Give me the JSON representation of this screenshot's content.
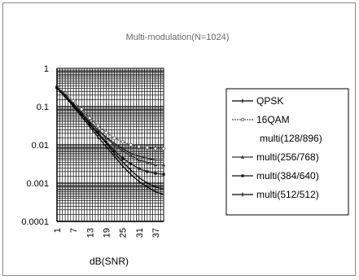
{
  "chart_data": {
    "type": "line",
    "title": "Multi-modulation(N=1024)",
    "xlabel": "dB(SNR)",
    "ylabel": "",
    "y_scale": "log",
    "ylim": [
      0.0001,
      1
    ],
    "x_ticks": [
      "1",
      "7",
      "13",
      "19",
      "25",
      "31",
      "37"
    ],
    "y_ticks": [
      "1",
      "0.1",
      "0.01",
      "0.001",
      "0.0001"
    ],
    "grid": true,
    "legend": "right",
    "x": [
      1,
      4,
      7,
      10,
      13,
      16,
      19,
      22,
      25,
      28,
      31,
      34,
      37,
      40
    ],
    "series": [
      {
        "name": "QPSK",
        "color": "#000000",
        "values": [
          0.3,
          0.18,
          0.1,
          0.055,
          0.03,
          0.016,
          0.009,
          0.005,
          0.0028,
          0.0017,
          0.0011,
          0.0008,
          0.0006,
          0.0005
        ]
      },
      {
        "name": "16QAM",
        "color": "#555555",
        "values": [
          0.33,
          0.22,
          0.14,
          0.085,
          0.05,
          0.032,
          0.021,
          0.015,
          0.012,
          0.01,
          0.009,
          0.0085,
          0.008,
          0.008
        ]
      },
      {
        "name": "multi(128/896)",
        "color": "#222222",
        "values": [
          0.32,
          0.2,
          0.12,
          0.07,
          0.04,
          0.025,
          0.016,
          0.011,
          0.008,
          0.006,
          0.005,
          0.0045,
          0.004,
          0.004
        ]
      },
      {
        "name": "multi(256/768)",
        "color": "#333333",
        "values": [
          0.32,
          0.2,
          0.12,
          0.07,
          0.04,
          0.024,
          0.015,
          0.01,
          0.007,
          0.0052,
          0.004,
          0.0035,
          0.003,
          0.003
        ]
      },
      {
        "name": "multi(384/640)",
        "color": "#111111",
        "values": [
          0.31,
          0.19,
          0.11,
          0.065,
          0.036,
          0.021,
          0.012,
          0.007,
          0.0045,
          0.0032,
          0.0024,
          0.002,
          0.0018,
          0.0017
        ]
      },
      {
        "name": "multi(512/512)",
        "color": "#000000",
        "values": [
          0.31,
          0.19,
          0.11,
          0.062,
          0.034,
          0.019,
          0.011,
          0.006,
          0.0036,
          0.0022,
          0.0014,
          0.001,
          0.0008,
          0.0007
        ]
      }
    ]
  }
}
